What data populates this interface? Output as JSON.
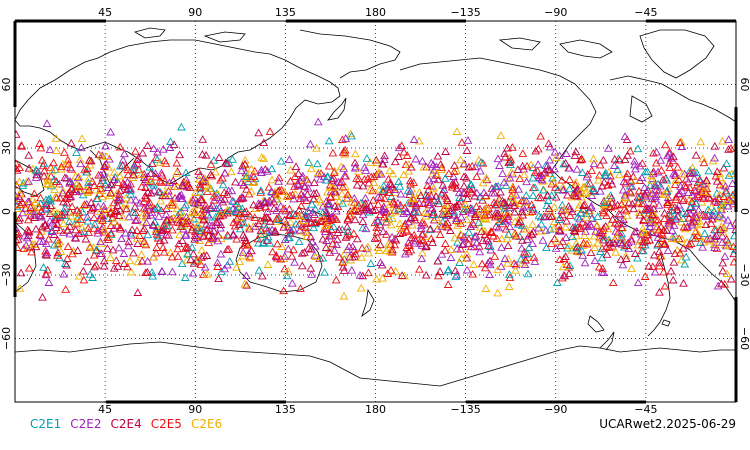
{
  "map": {
    "top_lon_labels": [
      "45",
      "90",
      "135",
      "180",
      "−135",
      "−90",
      "−45"
    ],
    "bottom_lon_labels": [
      "45",
      "90",
      "135",
      "180",
      "−135",
      "−90",
      "−45"
    ],
    "lat_labels": [
      "60",
      "30",
      "0",
      "−30",
      "−60"
    ],
    "lat_values": [
      60,
      30,
      0,
      -30,
      -60
    ],
    "lon_values": [
      45,
      90,
      135,
      180,
      225,
      270,
      315
    ],
    "lon_range": [
      0,
      360
    ],
    "lat_range": [
      -90,
      90
    ],
    "observation_lat_range": [
      -45,
      45
    ],
    "marker": "open-triangle",
    "grid": "dotted",
    "land_outline_color": "#000000"
  },
  "legend": {
    "items": [
      {
        "label": "C2E1",
        "color": "#00a0b0"
      },
      {
        "label": "C2E2",
        "color": "#a020c0"
      },
      {
        "label": "C2E4",
        "color": "#c00040"
      },
      {
        "label": "C2E5",
        "color": "#ee1010"
      },
      {
        "label": "C2E6",
        "color": "#f0b000"
      }
    ]
  },
  "footer": {
    "label": "UCARwet2.2025-06-29"
  }
}
